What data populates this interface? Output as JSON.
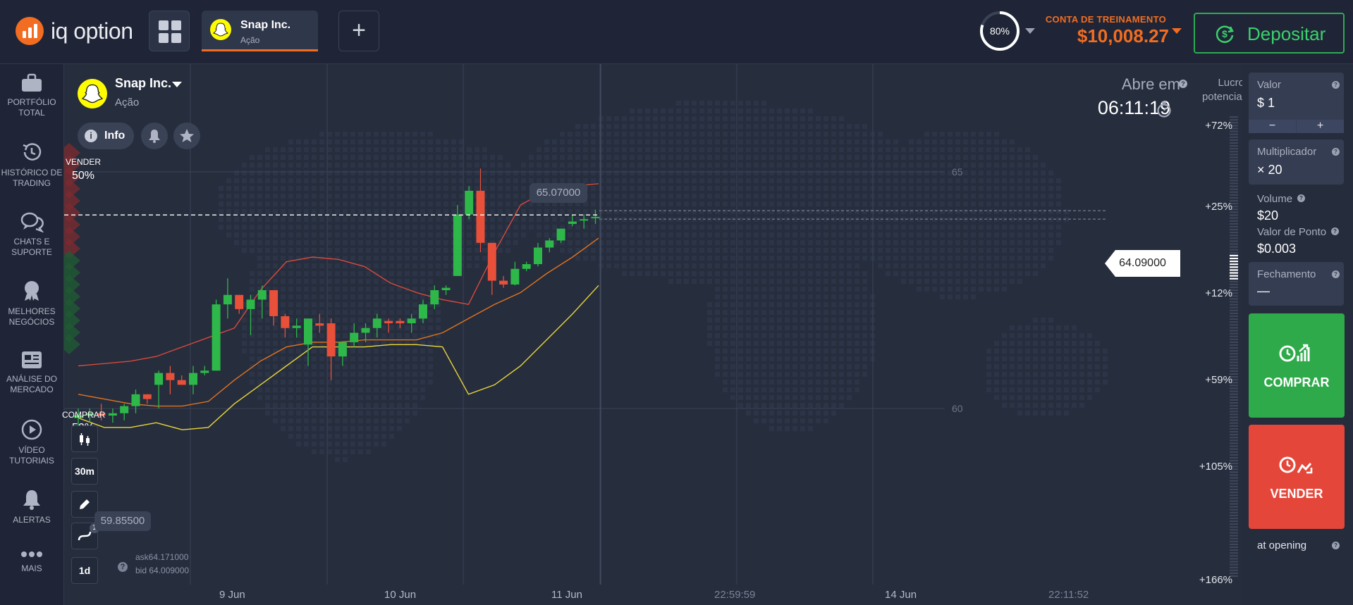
{
  "brand": {
    "name": "iq option"
  },
  "header": {
    "asset_tab": {
      "name": "Snap Inc.",
      "type": "Ação"
    },
    "profit_percent": "80%",
    "account_label": "CONTA DE TREINAMENTO",
    "account_balance": "$10,008.27",
    "deposit_label": "Depositar"
  },
  "sidebar": {
    "items": [
      {
        "label": "PORTFÓLIO TOTAL",
        "icon": "briefcase-icon"
      },
      {
        "label": "HISTÓRICO DE TRADING",
        "icon": "history-icon"
      },
      {
        "label": "CHATS E SUPORTE",
        "icon": "chat-icon"
      },
      {
        "label": "MELHORES NEGÓCIOS",
        "icon": "medal-icon"
      },
      {
        "label": "ANÁLISE DO MERCADO",
        "icon": "newspaper-icon"
      },
      {
        "label": "VÍDEO TUTORIAIS",
        "icon": "play-icon"
      },
      {
        "label": "ALERTAS",
        "icon": "bell-icon"
      },
      {
        "label": "MAIS",
        "icon": "more-icon"
      }
    ]
  },
  "asset": {
    "name": "Snap Inc.",
    "type": "Ação",
    "info_label": "Info"
  },
  "sentiment": {
    "sell_label": "VENDER",
    "sell_pct": "50%",
    "buy_label": "COMPRAR",
    "buy_pct": "50%"
  },
  "tools": {
    "timeframe": "30m",
    "period": "1d",
    "indicator_count": "1"
  },
  "quotes": {
    "ask": "ask64.171000",
    "bid": "bid 64.009000"
  },
  "market": {
    "opens_label": "Abre em",
    "timer": "06:11:19"
  },
  "chart_data": {
    "type": "candlestick",
    "y_ticks": [
      "65",
      "60"
    ],
    "x_labels": [
      "9 Jun",
      "10 Jun",
      "11 Jun",
      "22:59:59",
      "14 Jun",
      "22:11:52"
    ],
    "high_label": "65.07000",
    "low_label": "59.85500",
    "current_price": "64.09000",
    "ylim": [
      58.5,
      67.5
    ],
    "candles": [
      {
        "o": 59.8,
        "h": 60.0,
        "l": 59.6,
        "c": 59.85
      },
      {
        "o": 59.85,
        "h": 60.0,
        "l": 59.7,
        "c": 59.9
      },
      {
        "o": 59.9,
        "h": 60.1,
        "l": 59.75,
        "c": 59.85
      },
      {
        "o": 59.85,
        "h": 60.0,
        "l": 59.7,
        "c": 59.9
      },
      {
        "o": 59.9,
        "h": 60.1,
        "l": 59.75,
        "c": 60.05
      },
      {
        "o": 60.05,
        "h": 60.4,
        "l": 59.9,
        "c": 60.3
      },
      {
        "o": 60.3,
        "h": 60.3,
        "l": 60.1,
        "c": 60.2
      },
      {
        "o": 60.5,
        "h": 60.8,
        "l": 60.0,
        "c": 60.75
      },
      {
        "o": 60.75,
        "h": 60.9,
        "l": 60.3,
        "c": 60.6
      },
      {
        "o": 60.6,
        "h": 60.7,
        "l": 60.5,
        "c": 60.5
      },
      {
        "o": 60.5,
        "h": 60.9,
        "l": 60.3,
        "c": 60.75
      },
      {
        "o": 60.75,
        "h": 60.9,
        "l": 60.7,
        "c": 60.8
      },
      {
        "o": 60.8,
        "h": 62.3,
        "l": 60.8,
        "c": 62.2
      },
      {
        "o": 62.2,
        "h": 62.75,
        "l": 61.9,
        "c": 62.4
      },
      {
        "o": 62.4,
        "h": 62.4,
        "l": 62.0,
        "c": 62.1
      },
      {
        "o": 62.1,
        "h": 62.4,
        "l": 61.55,
        "c": 62.3
      },
      {
        "o": 62.3,
        "h": 62.6,
        "l": 61.9,
        "c": 62.5
      },
      {
        "o": 62.5,
        "h": 62.5,
        "l": 61.75,
        "c": 61.95
      },
      {
        "o": 61.95,
        "h": 62.0,
        "l": 61.5,
        "c": 61.7
      },
      {
        "o": 61.7,
        "h": 61.9,
        "l": 61.5,
        "c": 61.75
      },
      {
        "o": 61.35,
        "h": 61.9,
        "l": 60.9,
        "c": 61.9
      },
      {
        "o": 61.8,
        "h": 62.0,
        "l": 61.6,
        "c": 61.75
      },
      {
        "o": 61.8,
        "h": 61.9,
        "l": 60.6,
        "c": 61.1
      },
      {
        "o": 61.1,
        "h": 61.4,
        "l": 60.9,
        "c": 61.4
      },
      {
        "o": 61.4,
        "h": 61.8,
        "l": 61.3,
        "c": 61.6
      },
      {
        "o": 61.6,
        "h": 61.8,
        "l": 61.4,
        "c": 61.7
      },
      {
        "o": 61.7,
        "h": 62.0,
        "l": 61.5,
        "c": 61.9
      },
      {
        "o": 61.85,
        "h": 61.9,
        "l": 61.6,
        "c": 61.8
      },
      {
        "o": 61.85,
        "h": 61.9,
        "l": 61.7,
        "c": 61.8
      },
      {
        "o": 61.8,
        "h": 62.0,
        "l": 61.6,
        "c": 61.9
      },
      {
        "o": 61.9,
        "h": 62.3,
        "l": 61.8,
        "c": 62.2
      },
      {
        "o": 62.2,
        "h": 62.6,
        "l": 62.1,
        "c": 62.5
      },
      {
        "o": 62.5,
        "h": 62.6,
        "l": 62.4,
        "c": 62.55
      },
      {
        "o": 62.8,
        "h": 64.3,
        "l": 62.8,
        "c": 64.1
      },
      {
        "o": 64.1,
        "h": 64.7,
        "l": 64.0,
        "c": 64.6
      },
      {
        "o": 64.6,
        "h": 65.07,
        "l": 63.3,
        "c": 63.5
      },
      {
        "o": 63.5,
        "h": 63.5,
        "l": 62.4,
        "c": 62.7
      },
      {
        "o": 62.7,
        "h": 62.8,
        "l": 62.55,
        "c": 62.62
      },
      {
        "o": 62.62,
        "h": 63.1,
        "l": 62.6,
        "c": 62.95
      },
      {
        "o": 62.95,
        "h": 63.1,
        "l": 62.9,
        "c": 63.05
      },
      {
        "o": 63.05,
        "h": 63.5,
        "l": 63.0,
        "c": 63.4
      },
      {
        "o": 63.4,
        "h": 63.6,
        "l": 63.3,
        "c": 63.55
      },
      {
        "o": 63.55,
        "h": 63.8,
        "l": 63.5,
        "c": 63.8
      },
      {
        "o": 63.9,
        "h": 64.1,
        "l": 63.85,
        "c": 63.95
      },
      {
        "o": 64.0,
        "h": 64.1,
        "l": 63.8,
        "c": 64.0
      },
      {
        "o": 64.02,
        "h": 64.2,
        "l": 63.9,
        "c": 64.05
      }
    ],
    "bands": {
      "upper": [
        60.9,
        60.95,
        61.0,
        61.1,
        61.3,
        61.5,
        61.7,
        62.5,
        63.1,
        63.2,
        63.15,
        63.0,
        62.65,
        62.45,
        62.3,
        62.2,
        63.3,
        64.3,
        64.6,
        64.7,
        64.75
      ],
      "middle": [
        60.3,
        60.2,
        60.1,
        60.05,
        60.05,
        60.15,
        60.6,
        61.0,
        61.3,
        61.4,
        61.4,
        61.45,
        61.45,
        61.45,
        61.6,
        61.9,
        62.2,
        62.45,
        62.85,
        63.2,
        63.6
      ],
      "lower": [
        59.8,
        59.6,
        59.6,
        59.7,
        59.55,
        59.6,
        60.1,
        60.5,
        60.9,
        61.3,
        61.3,
        61.3,
        61.35,
        61.35,
        61.3,
        60.3,
        60.5,
        60.9,
        61.45,
        62.0,
        62.6
      ]
    }
  },
  "profit_scale": {
    "title": "Lucro potencial",
    "labels": [
      "+72%",
      "+25%",
      "+12%",
      "+59%",
      "+105%",
      "+166%"
    ]
  },
  "trade_panel": {
    "amount_label": "Valor",
    "amount_value": "$  1",
    "minus": "−",
    "plus": "+",
    "multiplier_label": "Multiplicador",
    "multiplier_value": "× 20",
    "volume_label": "Volume",
    "volume_value": "$20",
    "point_value_label": "Valor de Ponto",
    "point_value": "$0.003",
    "close_label": "Fechamento",
    "close_value": "—",
    "buy_label": "COMPRAR",
    "sell_label": "VENDER",
    "at_opening": "at opening"
  },
  "colors": {
    "accent": "#f26d21",
    "buy": "#2eaa4a",
    "sell": "#e4473a",
    "up_candle": "#2eb84a",
    "down_candle": "#e8503a",
    "band_red": "#d8493c",
    "band_orange": "#e2741f",
    "band_yellow": "#e9d63a"
  }
}
